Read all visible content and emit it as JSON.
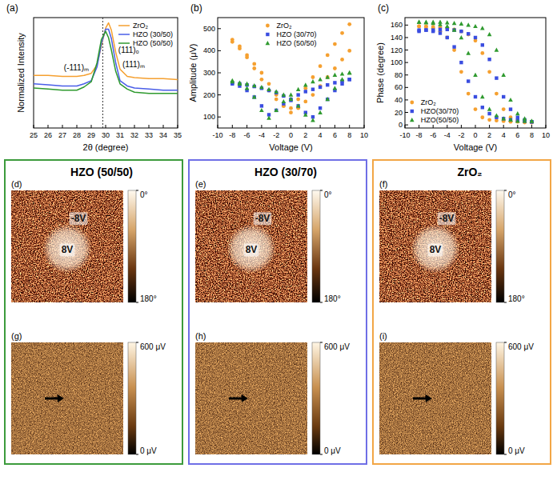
{
  "chart_data": [
    {
      "type": "line",
      "panel_label": "(a)",
      "x_label": "2θ (degree)",
      "y_label": "Normalized Intensity",
      "x": [
        25,
        26,
        27,
        28,
        28.5,
        29,
        29.4,
        29.7,
        30,
        30.2,
        30.4,
        30.7,
        31,
        31.5,
        32,
        33,
        34,
        35
      ],
      "series": [
        {
          "name": "ZrO₂",
          "color": "#f5a030",
          "values": [
            0.5,
            0.5,
            0.49,
            0.49,
            0.5,
            0.52,
            0.6,
            0.78,
            0.95,
            1.0,
            0.93,
            0.72,
            0.56,
            0.49,
            0.48,
            0.47,
            0.47,
            0.46
          ]
        },
        {
          "name": "HZO (30/50)",
          "color": "#4a5ee8",
          "values": [
            0.42,
            0.41,
            0.4,
            0.4,
            0.42,
            0.45,
            0.58,
            0.8,
            0.94,
            0.94,
            0.85,
            0.62,
            0.45,
            0.4,
            0.38,
            0.37,
            0.36,
            0.36
          ]
        },
        {
          "name": "HZO (50/50)",
          "color": "#2f9a2f",
          "values": [
            0.38,
            0.37,
            0.36,
            0.36,
            0.39,
            0.44,
            0.62,
            0.84,
            0.92,
            0.86,
            0.74,
            0.54,
            0.42,
            0.37,
            0.34,
            0.33,
            0.33,
            0.33
          ]
        }
      ],
      "xlim": [
        25,
        35
      ],
      "xticks": [
        25,
        26,
        27,
        28,
        29,
        30,
        31,
        32,
        33,
        34,
        35
      ],
      "ylim": [
        0,
        1.05
      ],
      "tick_labels": "x",
      "legend": "upper right",
      "vlines": [
        29.8
      ],
      "annotations": [
        {
          "text": "(111)ₒ",
          "x": 30.1
        },
        {
          "text": "(-111)ₘ",
          "x": 28.5
        },
        {
          "text": "(111)ₘ",
          "x": 31.5
        }
      ]
    },
    {
      "type": "scatter",
      "panel_label": "(b)",
      "x_label": "Voltage (V)",
      "y_label": "Amplitude (μV)",
      "x": [
        -8,
        -7,
        -6,
        -5,
        -4,
        -3,
        -2,
        -1,
        0,
        1,
        2,
        3,
        4,
        5,
        6,
        7,
        8,
        8,
        7,
        6,
        5,
        4,
        3,
        2,
        1,
        0,
        -1,
        -2,
        -3,
        -4,
        -5,
        -6,
        -7,
        -8
      ],
      "series": [
        {
          "name": "ZrO₂",
          "color": "#f5a030",
          "marker": "circle",
          "values": [
            450,
            410,
            370,
            320,
            270,
            220,
            180,
            150,
            140,
            180,
            230,
            280,
            330,
            380,
            430,
            480,
            520,
            400,
            360,
            320,
            280,
            240,
            200,
            170,
            140,
            120,
            150,
            200,
            250,
            300,
            340,
            380,
            420,
            440
          ]
        },
        {
          "name": "HZO (30/70)",
          "color": "#3a4de0",
          "marker": "square",
          "values": [
            250,
            240,
            220,
            190,
            150,
            110,
            130,
            160,
            180,
            200,
            215,
            225,
            235,
            245,
            255,
            262,
            270,
            270,
            250,
            220,
            180,
            140,
            100,
            120,
            150,
            175,
            195,
            210,
            220,
            230,
            238,
            245,
            250,
            255
          ]
        },
        {
          "name": "HZO (50/50)",
          "color": "#2f9a2f",
          "marker": "triangle",
          "values": [
            265,
            250,
            230,
            190,
            130,
            95,
            130,
            170,
            200,
            225,
            245,
            260,
            270,
            280,
            290,
            295,
            300,
            300,
            270,
            230,
            180,
            120,
            85,
            110,
            150,
            180,
            200,
            215,
            225,
            235,
            242,
            250,
            255,
            260
          ]
        }
      ],
      "xlim": [
        -10,
        10
      ],
      "xticks": [
        -10,
        -8,
        -6,
        -4,
        -2,
        0,
        2,
        4,
        6,
        8,
        10
      ],
      "ylim": [
        50,
        550
      ],
      "yticks": [
        100,
        200,
        300,
        400,
        500
      ],
      "legend": "upper center"
    },
    {
      "type": "scatter",
      "panel_label": "(c)",
      "x_label": "Voltage (V)",
      "y_label": "Phase (degree)",
      "x": [
        -8,
        -7,
        -6,
        -5,
        -4,
        -3,
        -2,
        -1,
        0,
        1,
        2,
        3,
        4,
        5,
        6,
        7,
        8,
        8,
        7,
        6,
        5,
        4,
        3,
        2,
        1,
        0,
        -1,
        -2,
        -3,
        -4,
        -5,
        -6,
        -7,
        -8
      ],
      "series": [
        {
          "name": "ZrO₂",
          "color": "#f5a030",
          "marker": "circle",
          "values": [
            158,
            158,
            157,
            156,
            155,
            153,
            150,
            145,
            135,
            115,
            85,
            50,
            25,
            12,
            7,
            5,
            4,
            4,
            4,
            5,
            5,
            6,
            7,
            8,
            12,
            25,
            50,
            85,
            120,
            140,
            150,
            155,
            157,
            158
          ]
        },
        {
          "name": "HZO(30/70)",
          "color": "#3a4de0",
          "marker": "square",
          "values": [
            150,
            152,
            152,
            153,
            153,
            152,
            150,
            146,
            140,
            128,
            105,
            75,
            45,
            25,
            12,
            8,
            5,
            5,
            6,
            7,
            8,
            10,
            12,
            18,
            28,
            45,
            70,
            100,
            125,
            140,
            147,
            150,
            152,
            152
          ]
        },
        {
          "name": "HZO(50/50)",
          "color": "#2f9a2f",
          "marker": "triangle",
          "values": [
            165,
            165,
            165,
            165,
            164,
            163,
            162,
            160,
            158,
            155,
            145,
            120,
            80,
            40,
            18,
            10,
            6,
            6,
            6,
            6,
            8,
            10,
            15,
            25,
            45,
            80,
            115,
            140,
            152,
            158,
            161,
            163,
            164,
            165
          ]
        }
      ],
      "xlim": [
        -10,
        10
      ],
      "xticks": [
        -10,
        -8,
        -6,
        -4,
        -2,
        0,
        2,
        4,
        6,
        8,
        10
      ],
      "ylim": [
        -5,
        172
      ],
      "yticks": [
        0,
        20,
        40,
        60,
        80,
        100,
        120,
        140,
        160
      ],
      "legend": "lower left"
    }
  ],
  "pfm_panels": [
    {
      "title": "HZO (50/50)",
      "color": "#3c9b3c",
      "phase_map": {
        "panel_label": "(d)",
        "write_labels": [
          "-8V",
          "8V"
        ],
        "colorbar": {
          "range": [
            0,
            180
          ],
          "ticks": [
            {
              "value": 0,
              "label": "0°"
            },
            {
              "value": 180,
              "label": "180°"
            }
          ]
        }
      },
      "amplitude_map": {
        "panel_label": "(g)",
        "colorbar": {
          "range": [
            600,
            0
          ],
          "ticks": [
            {
              "value": 600,
              "label": "600 μV"
            },
            {
              "value": 0,
              "label": "0 μV"
            }
          ]
        }
      }
    },
    {
      "title": "HZO (30/70)",
      "color": "#6f6fe6",
      "phase_map": {
        "panel_label": "(e)",
        "write_labels": [
          "-8V",
          "8V"
        ],
        "colorbar": {
          "range": [
            0,
            180
          ],
          "ticks": [
            {
              "value": 0,
              "label": "0°"
            },
            {
              "value": 180,
              "label": "180°"
            }
          ]
        }
      },
      "amplitude_map": {
        "panel_label": "(h)",
        "colorbar": {
          "range": [
            600,
            0
          ],
          "ticks": [
            {
              "value": 600,
              "label": "600 μV"
            },
            {
              "value": 0,
              "label": "0 μV"
            }
          ]
        }
      }
    },
    {
      "title": "ZrO₂",
      "color": "#f2a646",
      "phase_map": {
        "panel_label": "(f)",
        "write_labels": [
          "-8V",
          "8V"
        ],
        "colorbar": {
          "range": [
            0,
            180
          ],
          "ticks": [
            {
              "value": 0,
              "label": "0°"
            },
            {
              "value": 180,
              "label": "180°"
            }
          ]
        }
      },
      "amplitude_map": {
        "panel_label": "(i)",
        "colorbar": {
          "range": [
            600,
            0
          ],
          "ticks": [
            {
              "value": 600,
              "label": "600 μV"
            },
            {
              "value": 0,
              "label": "0 μV"
            }
          ]
        }
      }
    }
  ]
}
